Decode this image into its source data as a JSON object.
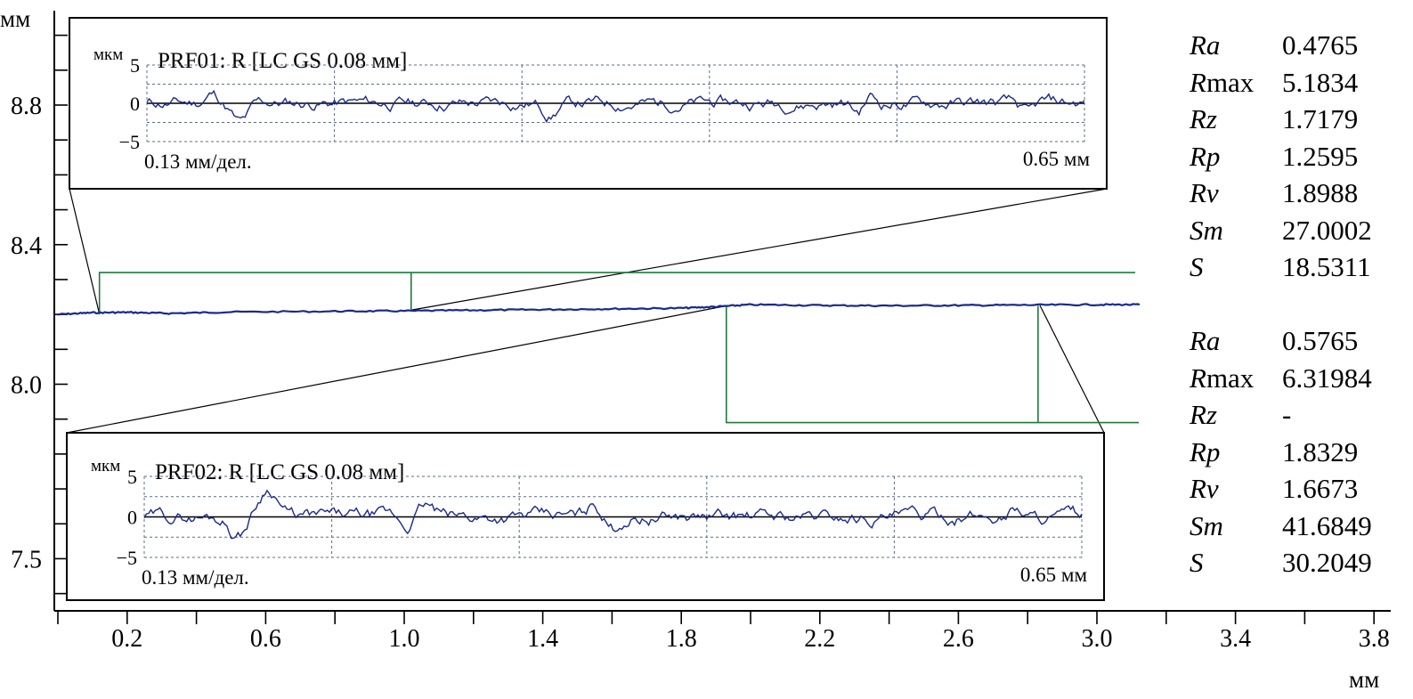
{
  "colors": {
    "profile": "#1a2a8c",
    "marker": "#1f7a3c",
    "axis": "#000000",
    "grid": "#5a6f85"
  },
  "chart_data": {
    "type": "line",
    "xlabel": "мм",
    "ylabel": "мм",
    "xlim": [
      0.0,
      3.85
    ],
    "ylim": [
      7.3,
      9.05
    ],
    "x_ticks": [
      "0.2",
      "0.6",
      "1.0",
      "1.4",
      "1.8",
      "2.2",
      "2.6",
      "3.0",
      "3.4",
      "3.8"
    ],
    "y_ticks": [
      "8.8",
      "8.4",
      "8.0",
      "7.5"
    ],
    "profile": {
      "x": [
        0.0,
        0.1,
        0.2,
        0.32,
        0.5,
        0.8,
        1.0,
        1.2,
        1.4,
        1.6,
        1.8,
        1.9,
        2.0,
        2.2,
        2.4,
        2.6,
        2.8,
        3.0,
        3.13
      ],
      "y": [
        8.2,
        8.205,
        8.206,
        8.203,
        8.207,
        8.209,
        8.21,
        8.212,
        8.214,
        8.216,
        8.218,
        8.222,
        8.228,
        8.226,
        8.225,
        8.226,
        8.227,
        8.228,
        8.228
      ]
    },
    "section_markers": [
      {
        "x_start": 0.12,
        "x_end": 1.02,
        "top": 8.32,
        "bottom": 8.21,
        "side": "above"
      },
      {
        "x_start": 1.93,
        "x_end": 2.83,
        "top": 8.225,
        "bottom": 7.89,
        "side": "below"
      }
    ],
    "insets": [
      {
        "name": "PRF01",
        "y_unit": "мкм",
        "title": "PRF01: R [LC GS 0.08 мм]",
        "y_ticks": [
          "5",
          "0",
          "−5"
        ],
        "scale_label": "0.13 мм/дел.",
        "length_label": "0.65 мм",
        "parameters": [
          {
            "name": "Ra",
            "value": "0.4765"
          },
          {
            "name": "Rmax",
            "value": "5.1834"
          },
          {
            "name": "Rz",
            "value": "1.7179"
          },
          {
            "name": "Rp",
            "value": "1.2595"
          },
          {
            "name": "Rv",
            "value": "1.8988"
          },
          {
            "name": "Sm",
            "value": "27.0002"
          },
          {
            "name": "S",
            "value": "18.5311"
          }
        ]
      },
      {
        "name": "PRF02",
        "y_unit": "мкм",
        "title": "PRF02: R [LC GS 0.08 мм]",
        "y_ticks": [
          "5",
          "0",
          "−5"
        ],
        "scale_label": "0.13 мм/дел.",
        "length_label": "0.65 мм",
        "parameters": [
          {
            "name": "Ra",
            "value": "0.5765"
          },
          {
            "name": "Rmax",
            "value": "6.31984"
          },
          {
            "name": "Rz",
            "value": "-"
          },
          {
            "name": "Rp",
            "value": "1.8329"
          },
          {
            "name": "Rv",
            "value": "1.6673"
          },
          {
            "name": "Sm",
            "value": "41.6849"
          },
          {
            "name": "S",
            "value": "30.2049"
          }
        ]
      }
    ]
  }
}
